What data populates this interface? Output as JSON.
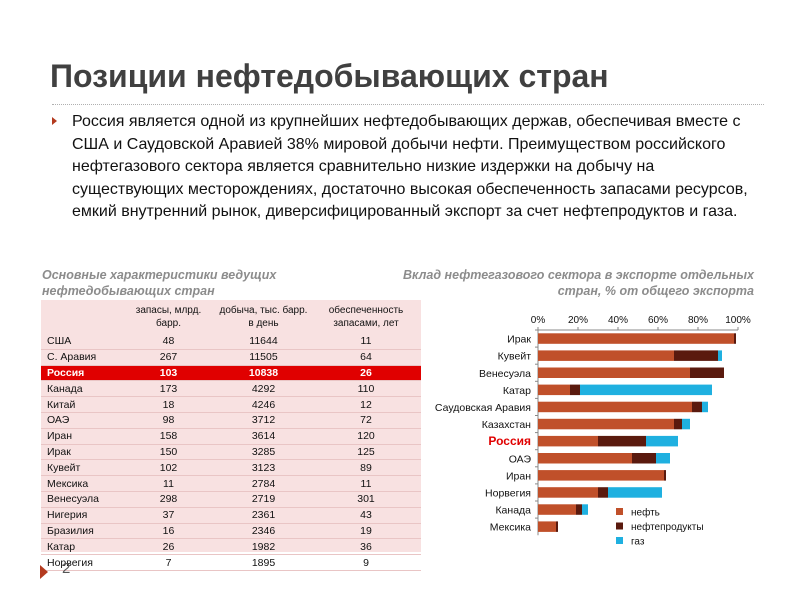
{
  "title": "Позиции нефтедобывающих стран",
  "body": "Россия является одной из крупнейших нефтедобывающих держав, обеспечивая вместе с США и Саудовской Аравией 38% мировой добычи нефти. Преимуществом российского нефтегазового сектора является сравнительно низкие издержки на добычу на существующих месторождениях, достаточно высокая обеспеченность запасами ресурсов, емкий внутренний рынок, диверсифицированный экспорт за счет нефтепродуктов и газа.",
  "table_caption": "Основные характеристики ведущих нефтедобывающих стран",
  "chart_caption": "Вклад нефтегазового сектора в экспорте отдельных стран, % от общего экспорта",
  "slide_number": "2",
  "colors": {
    "title": "#404040",
    "accent": "#b33a1f",
    "highlight": "#e00000",
    "oil": "#c0502a",
    "products": "#5a1a0e",
    "gas": "#1fb0e0"
  },
  "table": {
    "headers": [
      "",
      "запасы, млрд. барр.",
      "добыча, тыс. барр. в день",
      "обеспеченность запасами, лет"
    ],
    "rows": [
      [
        "США",
        "48",
        "11644",
        "11"
      ],
      [
        "С. Аравия",
        "267",
        "11505",
        "64"
      ],
      [
        "Россия",
        "103",
        "10838",
        "26"
      ],
      [
        "Канада",
        "173",
        "4292",
        "110"
      ],
      [
        "Китай",
        "18",
        "4246",
        "12"
      ],
      [
        "ОАЭ",
        "98",
        "3712",
        "72"
      ],
      [
        "Иран",
        "158",
        "3614",
        "120"
      ],
      [
        "Ирак",
        "150",
        "3285",
        "125"
      ],
      [
        "Кувейт",
        "102",
        "3123",
        "89"
      ],
      [
        "Мексика",
        "11",
        "2784",
        "11"
      ],
      [
        "Венесуэла",
        "298",
        "2719",
        "301"
      ],
      [
        "Нигерия",
        "37",
        "2361",
        "43"
      ],
      [
        "Бразилия",
        "16",
        "2346",
        "19"
      ],
      [
        "Катар",
        "26",
        "1982",
        "36"
      ],
      [
        "Норвегия",
        "7",
        "1895",
        "9"
      ]
    ],
    "highlight_row": "Россия"
  },
  "chart_data": {
    "type": "bar",
    "orientation": "horizontal",
    "stacked": true,
    "title": "Вклад нефтегазового сектора в экспорте отдельных стран, % от общего экспорта",
    "categories": [
      "Ирак",
      "Кувейт",
      "Венесуэла",
      "Катар",
      "Саудовская Аравия",
      "Казахстан",
      "Россия",
      "ОАЭ",
      "Иран",
      "Норвегия",
      "Канада",
      "Мексика"
    ],
    "highlight_category": "Россия",
    "series": [
      {
        "name": "нефть",
        "color": "#c0502a",
        "values": [
          98,
          68,
          76,
          16,
          77,
          68,
          30,
          47,
          63,
          30,
          19,
          9
        ]
      },
      {
        "name": "нефтепродукты",
        "color": "#5a1a0e",
        "values": [
          1,
          22,
          17,
          5,
          5,
          4,
          24,
          12,
          1,
          5,
          3,
          1
        ]
      },
      {
        "name": "газ",
        "color": "#1fb0e0",
        "values": [
          0,
          2,
          0,
          66,
          3,
          4,
          16,
          7,
          0,
          27,
          3,
          0
        ]
      }
    ],
    "xaxis": {
      "ticks": [
        "0%",
        "20%",
        "40%",
        "60%",
        "80%",
        "100%"
      ],
      "range": [
        0,
        100
      ],
      "position": "top"
    },
    "legend_position": "bottom-right",
    "grid": false
  }
}
